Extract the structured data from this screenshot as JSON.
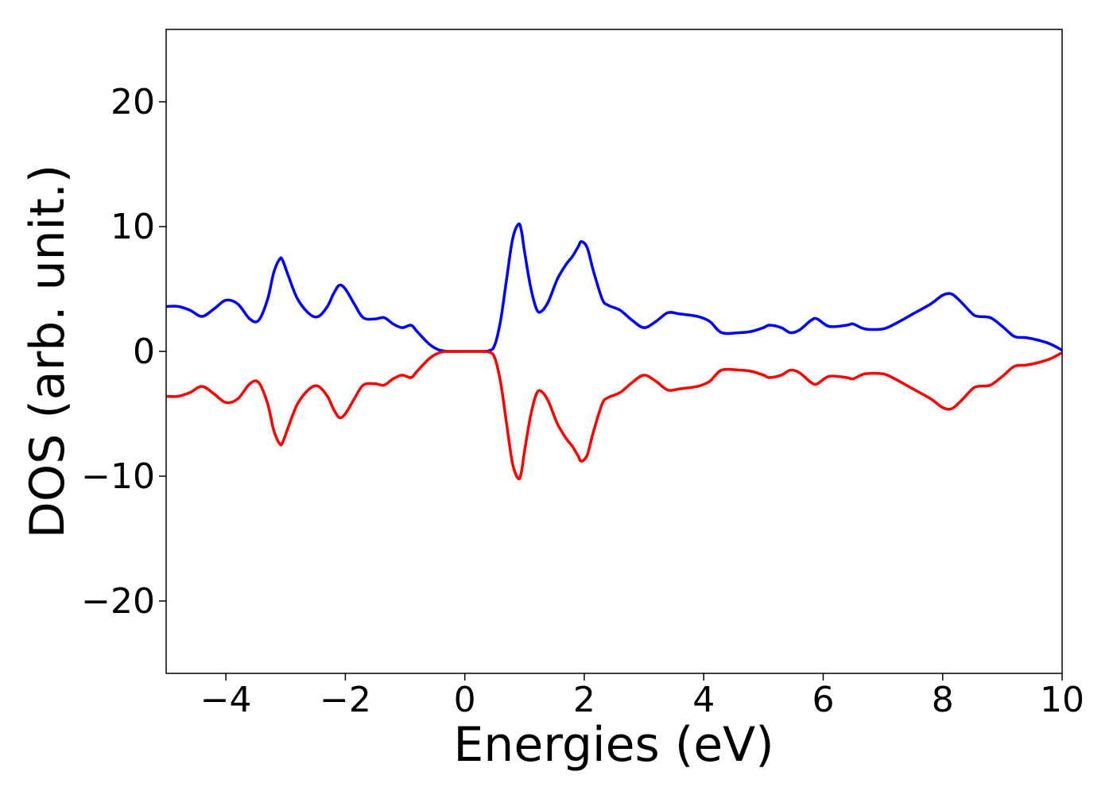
{
  "chart_data": {
    "type": "line",
    "title": "",
    "xlabel": "Energies (eV)",
    "ylabel": "DOS (arb. unit.)",
    "xlim": [
      -5,
      10
    ],
    "ylim": [
      -25.8,
      25.8
    ],
    "xticks": [
      -4,
      -2,
      0,
      2,
      4,
      6,
      8,
      10
    ],
    "xtick_labels": [
      "−4",
      "−2",
      "0",
      "2",
      "4",
      "6",
      "8",
      "10"
    ],
    "yticks": [
      -20,
      -10,
      0,
      10,
      20
    ],
    "ytick_labels": [
      "−20",
      "−10",
      "0",
      "10",
      "20"
    ],
    "grid": false,
    "series": [
      {
        "color": "#0000ff",
        "x": [
          -5.0,
          -4.8,
          -4.6,
          -4.4,
          -4.2,
          -4.0,
          -3.8,
          -3.6,
          -3.45,
          -3.3,
          -3.2,
          -3.1,
          -3.05,
          -2.95,
          -2.8,
          -2.6,
          -2.45,
          -2.3,
          -2.2,
          -2.1,
          -2.0,
          -1.85,
          -1.7,
          -1.5,
          -1.35,
          -1.2,
          -1.05,
          -0.9,
          -0.8,
          -0.6,
          -0.45,
          -0.3,
          -0.15,
          0.0,
          0.2,
          0.4,
          0.5,
          0.6,
          0.7,
          0.8,
          0.9,
          0.95,
          1.0,
          1.1,
          1.2,
          1.28,
          1.4,
          1.55,
          1.7,
          1.8,
          1.9,
          1.95,
          2.05,
          2.15,
          2.3,
          2.4,
          2.6,
          2.8,
          3.0,
          3.2,
          3.4,
          3.6,
          3.9,
          4.1,
          4.3,
          4.6,
          4.8,
          5.0,
          5.1,
          5.3,
          5.45,
          5.6,
          5.8,
          5.9,
          6.1,
          6.4,
          6.5,
          6.7,
          7.0,
          7.2,
          7.5,
          7.8,
          8.0,
          8.15,
          8.3,
          8.5,
          8.6,
          8.8,
          9.0,
          9.2,
          9.4,
          9.6,
          9.8,
          10.0
        ],
        "y": [
          3.6,
          3.6,
          3.3,
          2.8,
          3.4,
          4.1,
          3.8,
          2.6,
          2.5,
          4.2,
          6.3,
          7.4,
          7.3,
          6.0,
          4.2,
          3.0,
          2.8,
          3.6,
          4.6,
          5.3,
          5.0,
          3.8,
          2.7,
          2.6,
          2.7,
          2.2,
          1.9,
          2.1,
          1.6,
          0.6,
          0.15,
          0.0,
          0.0,
          0.0,
          0.0,
          0.05,
          0.5,
          2.5,
          5.8,
          9.0,
          10.2,
          9.6,
          8.0,
          5.2,
          3.4,
          3.2,
          4.0,
          5.8,
          7.0,
          7.6,
          8.4,
          8.8,
          8.3,
          6.5,
          4.2,
          3.7,
          3.3,
          2.5,
          1.9,
          2.4,
          3.1,
          3.0,
          2.8,
          2.4,
          1.5,
          1.5,
          1.6,
          1.9,
          2.1,
          1.9,
          1.5,
          1.7,
          2.5,
          2.6,
          2.0,
          2.1,
          2.2,
          1.8,
          1.8,
          2.2,
          3.0,
          3.8,
          4.5,
          4.6,
          4.0,
          3.0,
          2.8,
          2.7,
          2.0,
          1.2,
          1.1,
          0.9,
          0.6,
          0.1
        ]
      },
      {
        "color": "#ff0000",
        "x": [
          -5.0,
          -4.8,
          -4.6,
          -4.4,
          -4.2,
          -4.0,
          -3.8,
          -3.6,
          -3.45,
          -3.3,
          -3.2,
          -3.1,
          -3.05,
          -2.95,
          -2.8,
          -2.6,
          -2.45,
          -2.3,
          -2.2,
          -2.1,
          -2.0,
          -1.85,
          -1.7,
          -1.5,
          -1.35,
          -1.2,
          -1.05,
          -0.9,
          -0.8,
          -0.6,
          -0.45,
          -0.3,
          -0.15,
          0.0,
          0.2,
          0.4,
          0.5,
          0.6,
          0.7,
          0.8,
          0.9,
          0.95,
          1.0,
          1.1,
          1.2,
          1.28,
          1.4,
          1.55,
          1.7,
          1.8,
          1.9,
          1.95,
          2.05,
          2.15,
          2.3,
          2.4,
          2.6,
          2.8,
          3.0,
          3.2,
          3.4,
          3.6,
          3.9,
          4.1,
          4.3,
          4.6,
          4.8,
          5.0,
          5.1,
          5.3,
          5.45,
          5.6,
          5.8,
          5.9,
          6.1,
          6.4,
          6.5,
          6.7,
          7.0,
          7.2,
          7.5,
          7.8,
          8.0,
          8.15,
          8.3,
          8.5,
          8.6,
          8.8,
          9.0,
          9.2,
          9.4,
          9.6,
          9.8,
          10.0
        ],
        "y": [
          -3.6,
          -3.6,
          -3.3,
          -2.8,
          -3.4,
          -4.1,
          -3.8,
          -2.6,
          -2.5,
          -4.2,
          -6.3,
          -7.4,
          -7.3,
          -6.0,
          -4.2,
          -3.0,
          -2.8,
          -3.6,
          -4.6,
          -5.3,
          -5.0,
          -3.8,
          -2.7,
          -2.6,
          -2.7,
          -2.2,
          -1.9,
          -2.1,
          -1.6,
          -0.6,
          -0.15,
          0.0,
          0.0,
          0.0,
          0.0,
          -0.05,
          -0.5,
          -2.5,
          -5.8,
          -9.0,
          -10.2,
          -9.6,
          -8.0,
          -5.2,
          -3.4,
          -3.2,
          -4.0,
          -5.8,
          -7.0,
          -7.6,
          -8.4,
          -8.8,
          -8.3,
          -6.5,
          -4.2,
          -3.7,
          -3.3,
          -2.5,
          -1.9,
          -2.4,
          -3.1,
          -3.0,
          -2.8,
          -2.4,
          -1.5,
          -1.5,
          -1.6,
          -1.9,
          -2.1,
          -1.9,
          -1.5,
          -1.7,
          -2.5,
          -2.6,
          -2.0,
          -2.1,
          -2.2,
          -1.8,
          -1.8,
          -2.2,
          -3.0,
          -3.8,
          -4.5,
          -4.6,
          -4.0,
          -3.0,
          -2.8,
          -2.7,
          -2.0,
          -1.2,
          -1.1,
          -0.9,
          -0.6,
          -0.1
        ]
      }
    ]
  }
}
